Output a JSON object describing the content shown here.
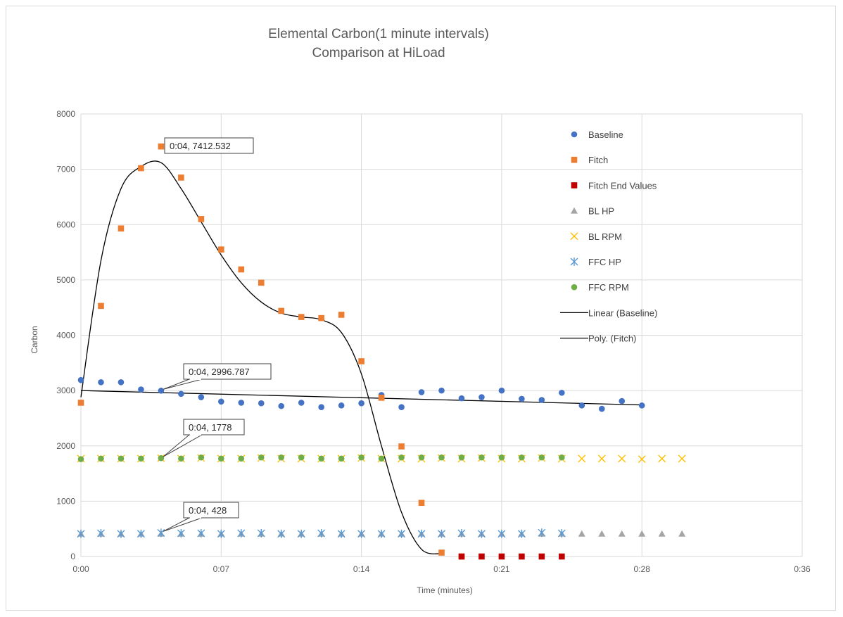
{
  "chart_data": {
    "type": "scatter",
    "title_line1": "Elemental Carbon(1 minute intervals)",
    "title_line2": "Comparison at HiLoad",
    "xlabel": "Time (minutes)",
    "ylabel": "Carbon",
    "x_unit": "minutes",
    "xlim": [
      0,
      36
    ],
    "ylim": [
      0,
      8000
    ],
    "x_ticks": [
      0,
      7,
      14,
      21,
      28,
      36
    ],
    "x_tick_labels": [
      "0:00",
      "0:07",
      "0:14",
      "0:21",
      "0:28",
      "0:36"
    ],
    "y_ticks": [
      0,
      1000,
      2000,
      3000,
      4000,
      5000,
      6000,
      7000,
      8000
    ],
    "y_tick_labels": [
      "0",
      "1000",
      "2000",
      "3000",
      "4000",
      "5000",
      "6000",
      "7000",
      "8000"
    ],
    "grid": true,
    "legend_position": "right",
    "series": [
      {
        "name": "Baseline",
        "marker": "circle",
        "color": "#4472C4",
        "x": [
          0,
          1,
          2,
          3,
          4,
          5,
          6,
          7,
          8,
          9,
          10,
          11,
          12,
          13,
          14,
          15,
          16,
          17,
          18,
          19,
          20,
          21,
          22,
          23,
          24,
          25,
          26,
          27,
          28
        ],
        "y": [
          3190,
          3150,
          3150,
          3020,
          2997,
          2940,
          2880,
          2800,
          2780,
          2770,
          2720,
          2780,
          2700,
          2730,
          2770,
          2920,
          2700,
          2970,
          3000,
          2860,
          2880,
          3000,
          2850,
          2830,
          2960,
          2730,
          2670,
          2810,
          2730
        ]
      },
      {
        "name": "Fitch",
        "marker": "square",
        "color": "#ED7D31",
        "x": [
          0,
          1,
          2,
          3,
          4,
          5,
          6,
          7,
          8,
          9,
          10,
          11,
          12,
          13,
          14,
          15,
          16,
          17,
          18,
          19
        ],
        "y": [
          2780,
          4530,
          5930,
          7020,
          7412.532,
          6850,
          6100,
          5550,
          5190,
          4950,
          4440,
          4330,
          4310,
          4370,
          3530,
          2870,
          1990,
          970,
          70,
          0
        ]
      },
      {
        "name": "Fitch End Values",
        "marker": "square",
        "color": "#C00000",
        "x": [
          19,
          20,
          21,
          22,
          23,
          24
        ],
        "y": [
          0,
          0,
          0,
          0,
          0,
          0
        ]
      },
      {
        "name": "BL HP",
        "marker": "triangle",
        "color": "#A5A5A5",
        "x": [
          0,
          1,
          2,
          3,
          4,
          5,
          6,
          7,
          8,
          9,
          10,
          11,
          12,
          13,
          14,
          15,
          16,
          17,
          18,
          19,
          20,
          21,
          22,
          23,
          24,
          25,
          26,
          27,
          28,
          29,
          30
        ],
        "y": [
          410,
          410,
          410,
          410,
          410,
          410,
          410,
          410,
          410,
          410,
          410,
          410,
          410,
          410,
          410,
          410,
          410,
          410,
          410,
          410,
          410,
          410,
          410,
          410,
          410,
          410,
          410,
          410,
          410,
          410,
          410
        ]
      },
      {
        "name": "BL RPM",
        "marker": "x",
        "color": "#FFC000",
        "x": [
          0,
          1,
          2,
          3,
          4,
          5,
          6,
          7,
          8,
          9,
          10,
          11,
          12,
          13,
          14,
          15,
          16,
          17,
          18,
          19,
          20,
          21,
          22,
          23,
          24,
          25,
          26,
          27,
          28,
          29,
          30
        ],
        "y": [
          1770,
          1770,
          1770,
          1770,
          1778,
          1770,
          1780,
          1770,
          1770,
          1780,
          1770,
          1770,
          1770,
          1770,
          1780,
          1770,
          1770,
          1770,
          1780,
          1770,
          1780,
          1770,
          1770,
          1780,
          1770,
          1770,
          1770,
          1770,
          1760,
          1770,
          1770
        ]
      },
      {
        "name": "FFC HP",
        "marker": "asterisk",
        "color": "#5B9BD5",
        "x": [
          0,
          1,
          2,
          3,
          4,
          5,
          6,
          7,
          8,
          9,
          10,
          11,
          12,
          13,
          14,
          15,
          16,
          17,
          18,
          19,
          20,
          21,
          22,
          23,
          24
        ],
        "y": [
          410,
          420,
          410,
          410,
          428,
          420,
          420,
          410,
          420,
          420,
          410,
          410,
          420,
          410,
          410,
          410,
          410,
          410,
          410,
          420,
          410,
          410,
          410,
          430,
          420
        ]
      },
      {
        "name": "FFC RPM",
        "marker": "circle",
        "color": "#70AD47",
        "x": [
          0,
          1,
          2,
          3,
          4,
          5,
          6,
          7,
          8,
          9,
          10,
          11,
          12,
          13,
          14,
          15,
          16,
          17,
          18,
          19,
          20,
          21,
          22,
          23,
          24
        ],
        "y": [
          1760,
          1770,
          1770,
          1770,
          1778,
          1770,
          1790,
          1770,
          1770,
          1790,
          1790,
          1790,
          1770,
          1770,
          1790,
          1770,
          1790,
          1790,
          1790,
          1790,
          1790,
          1790,
          1790,
          1790,
          1790
        ]
      }
    ],
    "trendlines": [
      {
        "name": "Linear (Baseline)",
        "type": "linear",
        "color": "#000000",
        "x": [
          0,
          28
        ],
        "y": [
          3000,
          2740
        ]
      },
      {
        "name": "Poly. (Fitch)",
        "type": "polynomial",
        "color": "#000000",
        "x": [
          0,
          1,
          2,
          3,
          4,
          5,
          6,
          7,
          8,
          9,
          10,
          11,
          12,
          13,
          14,
          15,
          16,
          17,
          18
        ],
        "y": [
          2880,
          5350,
          6650,
          7050,
          7120,
          6650,
          6050,
          5450,
          4950,
          4600,
          4400,
          4330,
          4280,
          4050,
          3300,
          2000,
          800,
          130,
          50
        ]
      }
    ],
    "data_labels": [
      {
        "text": "0:04, 7412.532"
      },
      {
        "text": "0:04, 2996.787"
      },
      {
        "text": "0:04, 1778"
      },
      {
        "text": "0:04, 428"
      }
    ],
    "colors": {
      "grid": "#d9d9d9",
      "text": "#595959"
    }
  }
}
